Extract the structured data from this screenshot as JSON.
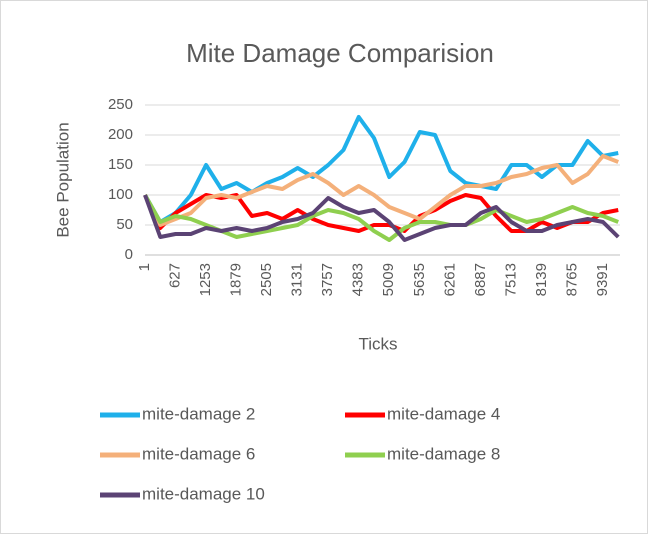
{
  "chart_data": {
    "type": "line",
    "title": "Mite Damage Comparision",
    "x_label": "Ticks",
    "y_label": "Bee Population",
    "x": [
      1,
      314,
      627,
      940,
      1253,
      1566,
      1879,
      2192,
      2505,
      2818,
      3131,
      3444,
      3757,
      4070,
      4383,
      4696,
      5009,
      5322,
      5635,
      5948,
      6261,
      6574,
      6887,
      7200,
      7513,
      7826,
      8139,
      8452,
      8765,
      9078,
      9391,
      9704
    ],
    "series": [
      {
        "name": "mite-damage 2",
        "color": "#1fb0ea",
        "values": [
          100,
          55,
          70,
          100,
          150,
          110,
          120,
          105,
          120,
          130,
          145,
          130,
          150,
          175,
          230,
          195,
          130,
          155,
          205,
          200,
          140,
          120,
          115,
          110,
          150,
          150,
          130,
          150,
          150,
          190,
          165,
          170
        ]
      },
      {
        "name": "mite-damage 4",
        "color": "#ff0000",
        "values": [
          100,
          45,
          70,
          85,
          100,
          95,
          100,
          65,
          70,
          60,
          75,
          60,
          50,
          45,
          40,
          50,
          50,
          40,
          65,
          75,
          90,
          100,
          95,
          65,
          40,
          40,
          55,
          45,
          55,
          55,
          70,
          75
        ]
      },
      {
        "name": "mite-damage 6",
        "color": "#f4b07a",
        "values": [
          100,
          50,
          60,
          70,
          95,
          100,
          95,
          105,
          115,
          110,
          125,
          135,
          120,
          100,
          115,
          100,
          80,
          70,
          60,
          80,
          100,
          115,
          115,
          120,
          130,
          135,
          145,
          150,
          120,
          135,
          165,
          155
        ]
      },
      {
        "name": "mite-damage 8",
        "color": "#8fcf4f",
        "values": [
          100,
          55,
          65,
          60,
          50,
          40,
          30,
          35,
          40,
          45,
          50,
          65,
          75,
          70,
          60,
          40,
          25,
          45,
          55,
          55,
          50,
          50,
          60,
          75,
          65,
          55,
          60,
          70,
          80,
          70,
          65,
          55
        ]
      },
      {
        "name": "mite-damage 10",
        "color": "#5b4374",
        "values": [
          100,
          30,
          35,
          35,
          45,
          40,
          45,
          40,
          45,
          55,
          60,
          70,
          95,
          80,
          70,
          75,
          55,
          25,
          35,
          45,
          50,
          50,
          70,
          80,
          55,
          40,
          40,
          50,
          55,
          60,
          55,
          30
        ]
      }
    ],
    "xlim": [
      1,
      9740
    ],
    "xticks": [
      1,
      627,
      1253,
      1879,
      2505,
      3131,
      3757,
      4383,
      5009,
      5635,
      6261,
      6887,
      7513,
      8139,
      8765,
      9391
    ],
    "ylim": [
      0,
      250
    ],
    "yticks": [
      0,
      50,
      100,
      150,
      200,
      250
    ],
    "grid": true
  }
}
